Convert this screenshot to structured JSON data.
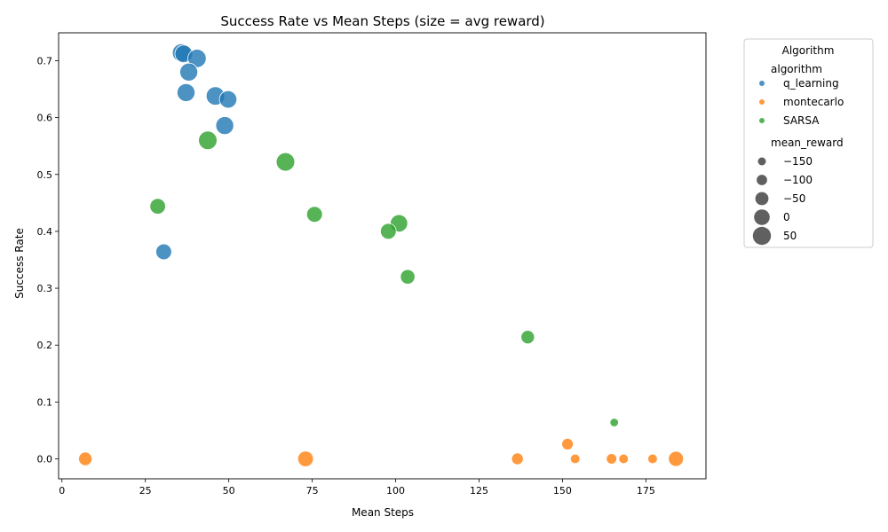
{
  "chart_data": {
    "type": "scatter",
    "title": "Success Rate vs Mean Steps (size = avg reward)",
    "xlabel": "Mean Steps",
    "ylabel": "Success Rate",
    "xlim": [
      -1,
      193
    ],
    "ylim": [
      -0.035,
      0.749
    ],
    "xticks": [
      0,
      25,
      50,
      75,
      100,
      125,
      150,
      175
    ],
    "yticks": [
      0.0,
      0.1,
      0.2,
      0.3,
      0.4,
      0.5,
      0.6,
      0.7
    ],
    "ytick_labels": [
      "0.0",
      "0.1",
      "0.2",
      "0.3",
      "0.4",
      "0.5",
      "0.6",
      "0.7"
    ],
    "grid": false,
    "legend_position": "outside-right",
    "legend": {
      "title": "Algorithm",
      "hue_header": "algorithm",
      "size_header": "mean_reward",
      "size_entries": [
        {
          "label": "−150",
          "value": -150
        },
        {
          "label": "−100",
          "value": -100
        },
        {
          "label": "−50",
          "value": -50
        },
        {
          "label": "0",
          "value": 0
        },
        {
          "label": "50",
          "value": 50
        }
      ]
    },
    "series": [
      {
        "name": "q_learning",
        "color": "#1f77b4",
        "points": [
          {
            "x": 35.8,
            "y": 0.714,
            "r": 48
          },
          {
            "x": 36.5,
            "y": 0.712,
            "r": 40
          },
          {
            "x": 40.5,
            "y": 0.704,
            "r": 52
          },
          {
            "x": 38.0,
            "y": 0.68,
            "r": 45
          },
          {
            "x": 37.2,
            "y": 0.644,
            "r": 45
          },
          {
            "x": 46.0,
            "y": 0.638,
            "r": 55
          },
          {
            "x": 49.8,
            "y": 0.632,
            "r": 35
          },
          {
            "x": 48.8,
            "y": 0.586,
            "r": 45
          },
          {
            "x": 30.5,
            "y": 0.364,
            "r": 5
          }
        ]
      },
      {
        "name": "montecarlo",
        "color": "#ff7f0e",
        "points": [
          {
            "x": 7.0,
            "y": 0.0,
            "r": -40
          },
          {
            "x": 73.0,
            "y": 0.0,
            "r": 0
          },
          {
            "x": 136.5,
            "y": 0.0,
            "r": -75
          },
          {
            "x": 151.5,
            "y": 0.026,
            "r": -80
          },
          {
            "x": 153.8,
            "y": 0.0,
            "r": -120
          },
          {
            "x": 164.7,
            "y": 0.0,
            "r": -100
          },
          {
            "x": 168.3,
            "y": 0.0,
            "r": -120
          },
          {
            "x": 177.0,
            "y": 0.0,
            "r": -120
          },
          {
            "x": 184.0,
            "y": 0.0,
            "r": -10
          }
        ]
      },
      {
        "name": "SARSA",
        "color": "#2ca02c",
        "points": [
          {
            "x": 43.7,
            "y": 0.56,
            "r": 55
          },
          {
            "x": 67.0,
            "y": 0.522,
            "r": 55
          },
          {
            "x": 28.7,
            "y": 0.444,
            "r": 0
          },
          {
            "x": 75.7,
            "y": 0.43,
            "r": 5
          },
          {
            "x": 101.0,
            "y": 0.414,
            "r": 35
          },
          {
            "x": 97.8,
            "y": 0.4,
            "r": 5
          },
          {
            "x": 103.6,
            "y": 0.32,
            "r": -20
          },
          {
            "x": 139.6,
            "y": 0.214,
            "r": -40
          },
          {
            "x": 165.5,
            "y": 0.064,
            "r": -140
          }
        ]
      }
    ]
  }
}
